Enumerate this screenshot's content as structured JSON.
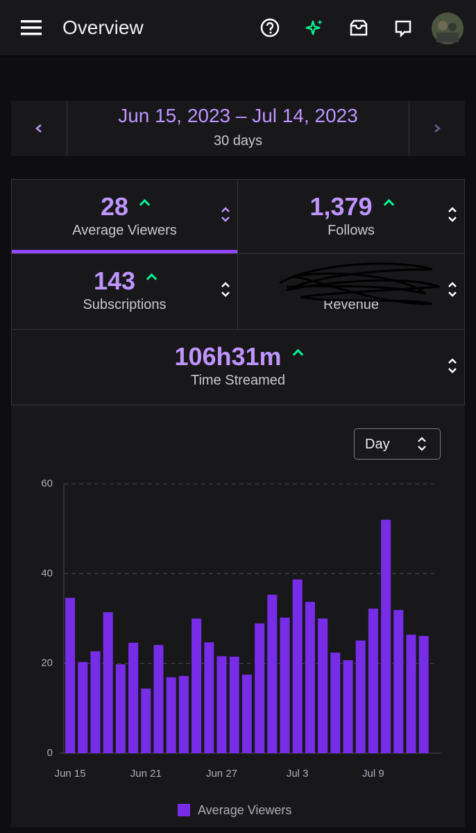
{
  "header": {
    "title": "Overview"
  },
  "date_range": {
    "label": "Jun 15, 2023 – Jul 14, 2023",
    "duration": "30 days"
  },
  "stats": [
    {
      "value": "28",
      "label": "Average Viewers"
    },
    {
      "value": "1,379",
      "label": "Follows"
    },
    {
      "value": "143",
      "label": "Subscriptions"
    },
    {
      "label": "Revenue"
    },
    {
      "value": "106h31m",
      "label": "Time Streamed"
    }
  ],
  "interval_select": "Day",
  "chart_data": {
    "type": "bar",
    "categories": [
      "Jun 15",
      null,
      null,
      null,
      null,
      null,
      "Jun 21",
      null,
      null,
      null,
      null,
      null,
      "Jun 27",
      null,
      null,
      null,
      null,
      null,
      "Jul 3",
      null,
      null,
      null,
      null,
      null,
      "Jul 9",
      null,
      null,
      null,
      null
    ],
    "series": [
      {
        "name": "Average Viewers",
        "color": "#772ce8",
        "values": [
          34.6,
          20.3,
          22.7,
          31.4,
          19.8,
          24.6,
          14.4,
          24.1,
          16.9,
          17.2,
          30.0,
          24.7,
          21.6,
          21.5,
          17.5,
          28.9,
          35.3,
          30.2,
          38.7,
          33.7,
          30.0,
          22.4,
          20.7,
          25.1,
          32.2,
          52.0,
          31.9,
          26.4,
          26.1
        ]
      }
    ],
    "ylim": [
      0,
      60
    ],
    "yticks": [
      0,
      20,
      40,
      60
    ],
    "grid": true,
    "legend": "bottom"
  }
}
